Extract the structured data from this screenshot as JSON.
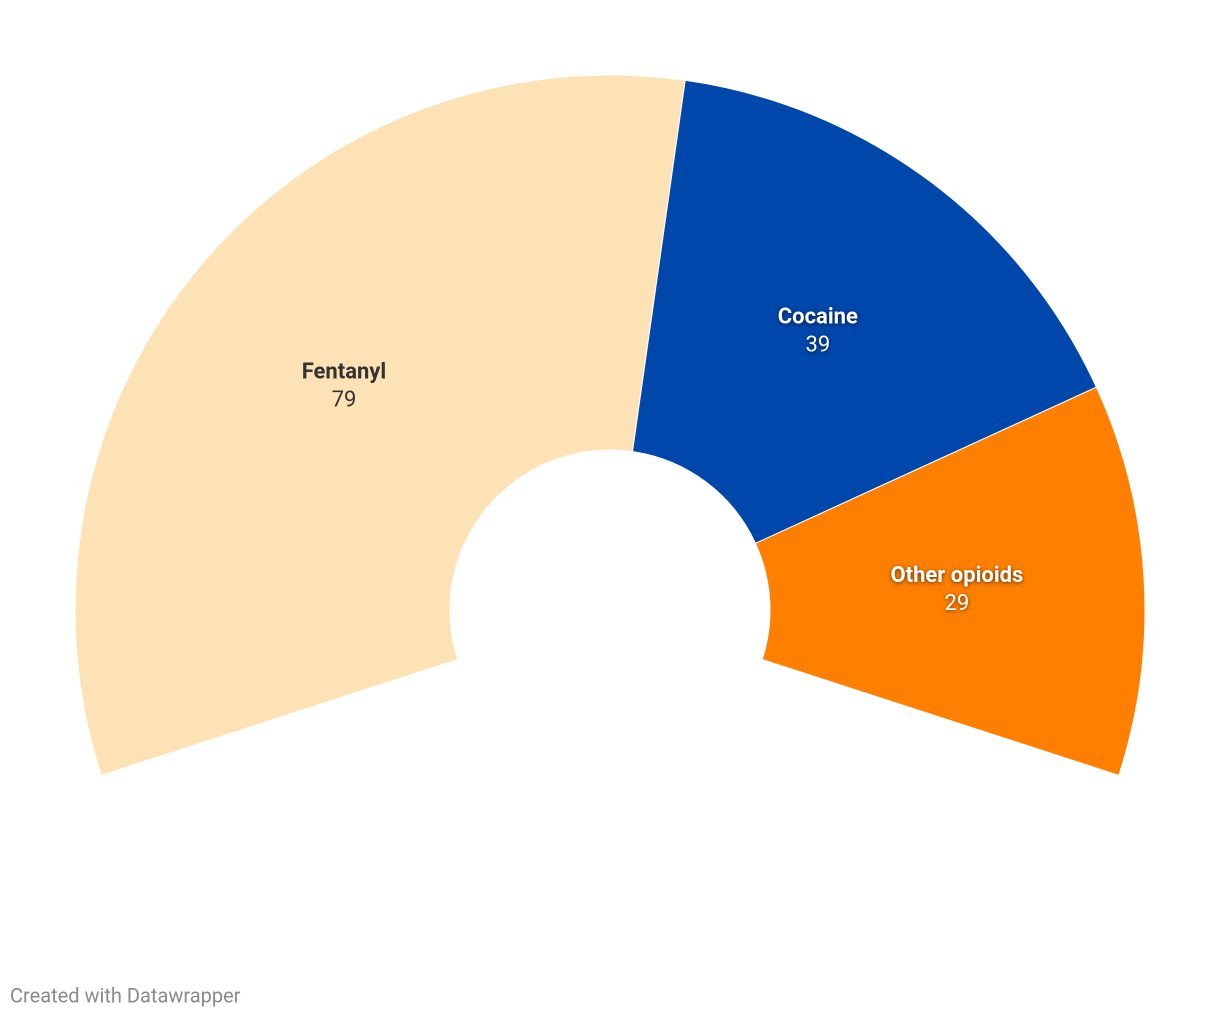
{
  "chart_data": {
    "type": "donut",
    "categories": [
      "Fentanyl",
      "Cocaine",
      "Other opioids"
    ],
    "values": [
      79,
      39,
      29
    ],
    "colors": [
      "#fde2b5",
      "#0047ab",
      "#ff7f00"
    ]
  },
  "credit": "Created with Datawrapper"
}
